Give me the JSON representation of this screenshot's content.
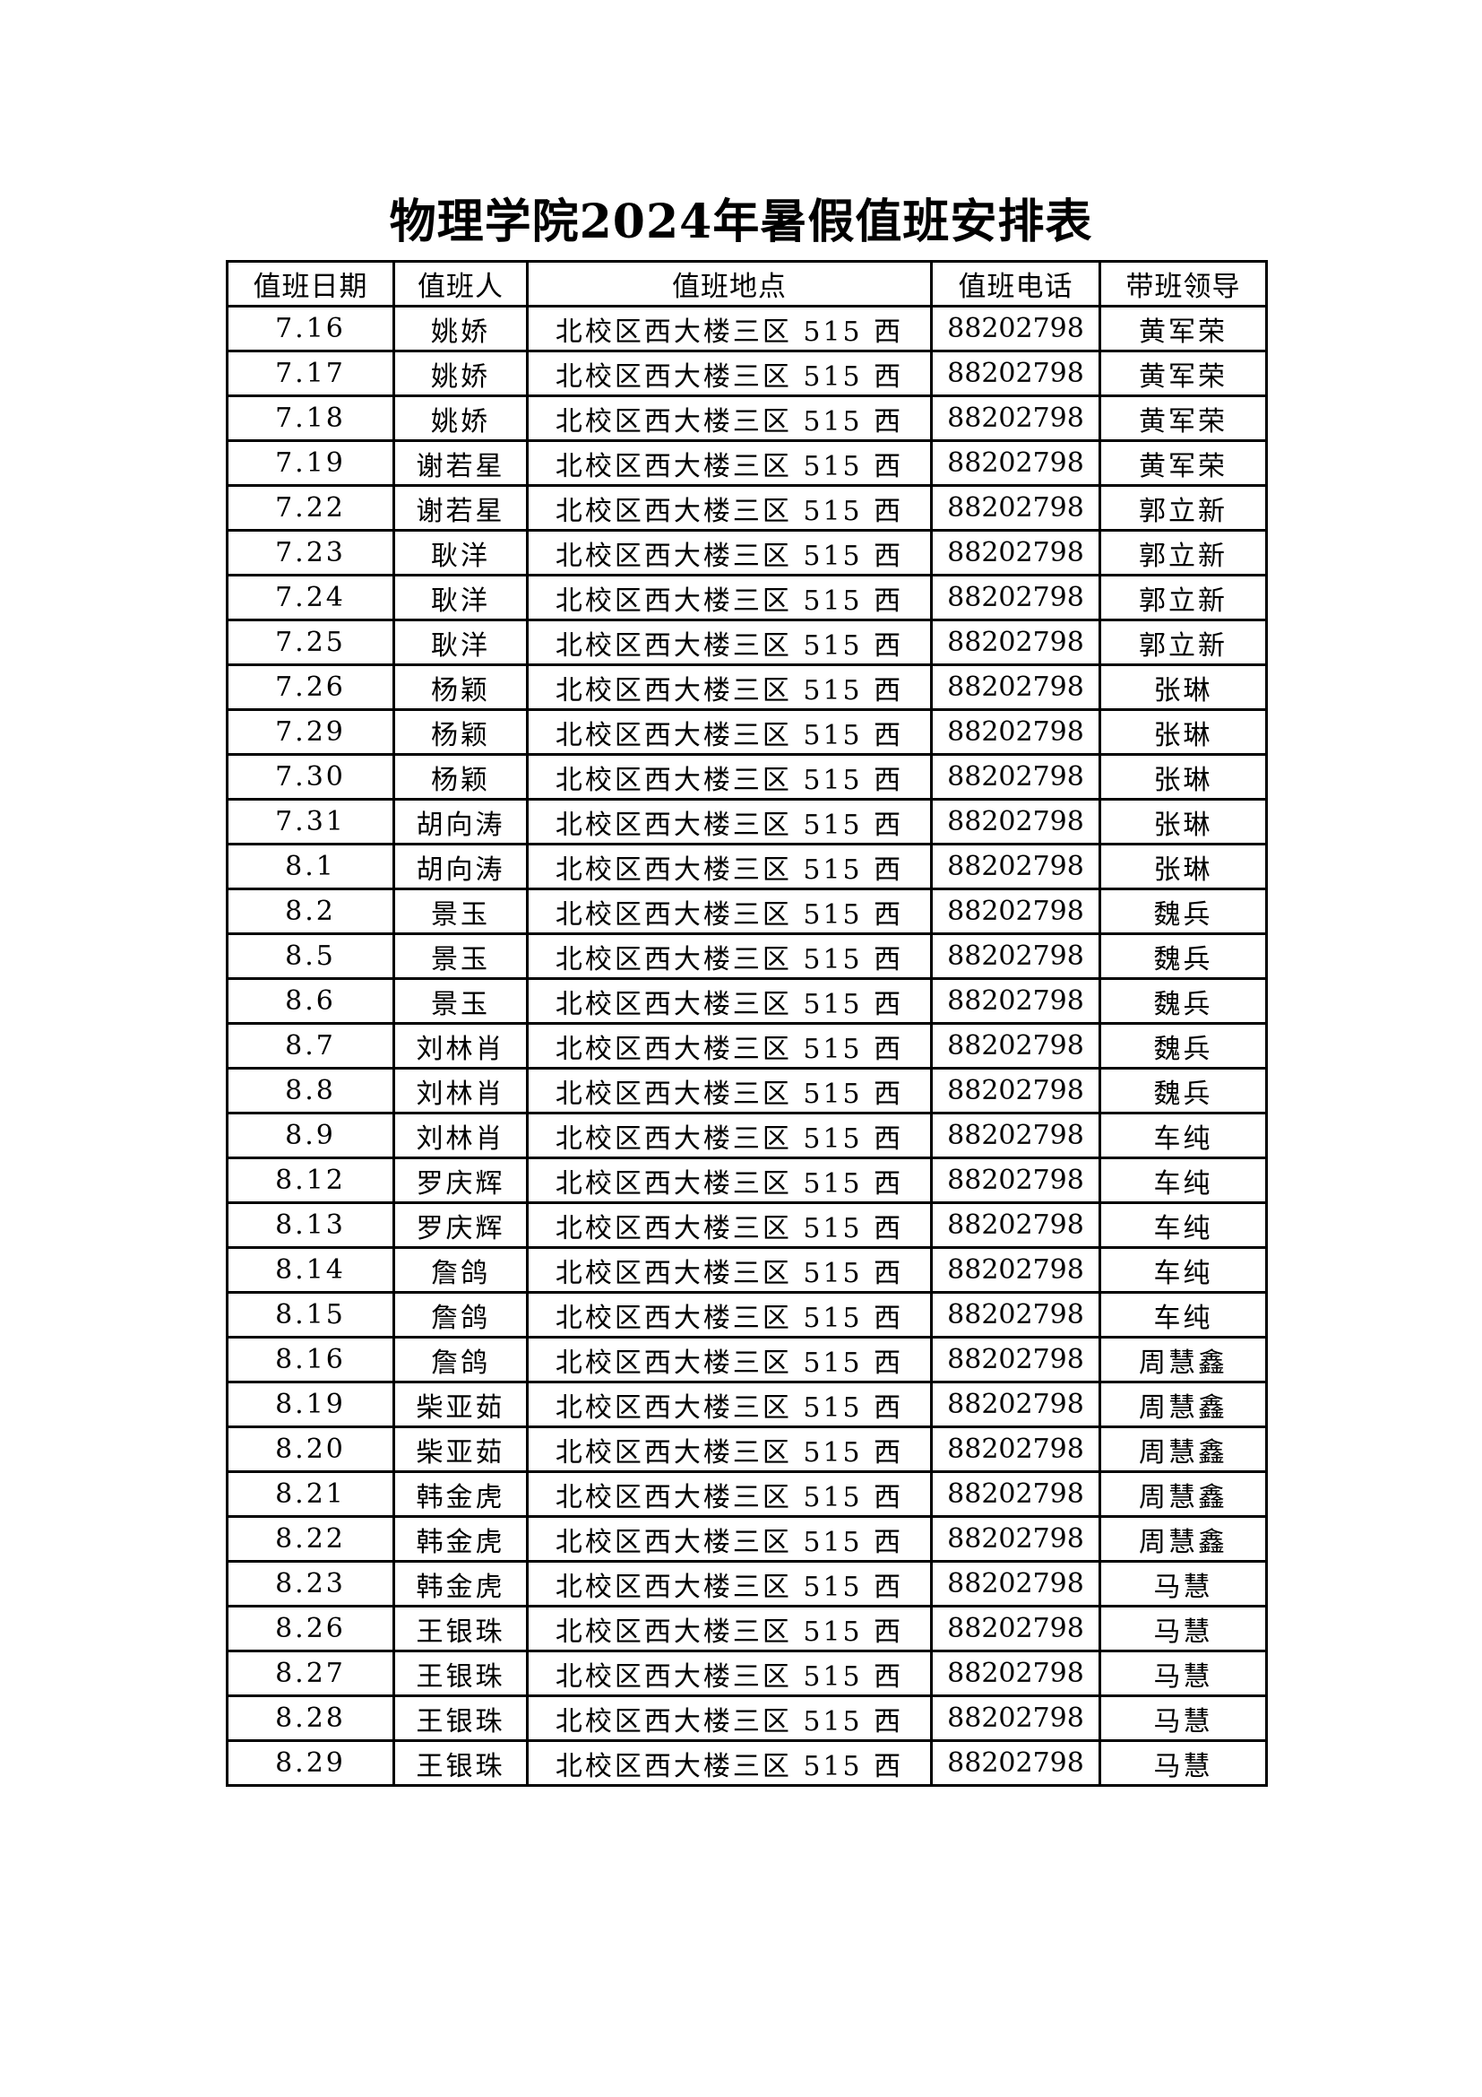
{
  "title": "物理学院2024年暑假值班安排表",
  "headers": [
    "值班日期",
    "值班人",
    "值班地点",
    "值班电话",
    "带班领导"
  ],
  "rows": [
    [
      "7.16",
      "姚娇",
      "北校区西大楼三区 515 西",
      "88202798",
      "黄军荣"
    ],
    [
      "7.17",
      "姚娇",
      "北校区西大楼三区 515 西",
      "88202798",
      "黄军荣"
    ],
    [
      "7.18",
      "姚娇",
      "北校区西大楼三区 515 西",
      "88202798",
      "黄军荣"
    ],
    [
      "7.19",
      "谢若星",
      "北校区西大楼三区 515 西",
      "88202798",
      "黄军荣"
    ],
    [
      "7.22",
      "谢若星",
      "北校区西大楼三区 515 西",
      "88202798",
      "郭立新"
    ],
    [
      "7.23",
      "耿洋",
      "北校区西大楼三区 515 西",
      "88202798",
      "郭立新"
    ],
    [
      "7.24",
      "耿洋",
      "北校区西大楼三区 515 西",
      "88202798",
      "郭立新"
    ],
    [
      "7.25",
      "耿洋",
      "北校区西大楼三区 515 西",
      "88202798",
      "郭立新"
    ],
    [
      "7.26",
      "杨颖",
      "北校区西大楼三区 515 西",
      "88202798",
      "张琳"
    ],
    [
      "7.29",
      "杨颖",
      "北校区西大楼三区 515 西",
      "88202798",
      "张琳"
    ],
    [
      "7.30",
      "杨颖",
      "北校区西大楼三区 515 西",
      "88202798",
      "张琳"
    ],
    [
      "7.31",
      "胡向涛",
      "北校区西大楼三区 515 西",
      "88202798",
      "张琳"
    ],
    [
      "8.1",
      "胡向涛",
      "北校区西大楼三区 515 西",
      "88202798",
      "张琳"
    ],
    [
      "8.2",
      "景玉",
      "北校区西大楼三区 515 西",
      "88202798",
      "魏兵"
    ],
    [
      "8.5",
      "景玉",
      "北校区西大楼三区 515 西",
      "88202798",
      "魏兵"
    ],
    [
      "8.6",
      "景玉",
      "北校区西大楼三区 515 西",
      "88202798",
      "魏兵"
    ],
    [
      "8.7",
      "刘林肖",
      "北校区西大楼三区 515 西",
      "88202798",
      "魏兵"
    ],
    [
      "8.8",
      "刘林肖",
      "北校区西大楼三区 515 西",
      "88202798",
      "魏兵"
    ],
    [
      "8.9",
      "刘林肖",
      "北校区西大楼三区 515 西",
      "88202798",
      "车纯"
    ],
    [
      "8.12",
      "罗庆辉",
      "北校区西大楼三区 515 西",
      "88202798",
      "车纯"
    ],
    [
      "8.13",
      "罗庆辉",
      "北校区西大楼三区 515 西",
      "88202798",
      "车纯"
    ],
    [
      "8.14",
      "詹鸽",
      "北校区西大楼三区 515 西",
      "88202798",
      "车纯"
    ],
    [
      "8.15",
      "詹鸽",
      "北校区西大楼三区 515 西",
      "88202798",
      "车纯"
    ],
    [
      "8.16",
      "詹鸽",
      "北校区西大楼三区 515 西",
      "88202798",
      "周慧鑫"
    ],
    [
      "8.19",
      "柴亚茹",
      "北校区西大楼三区 515 西",
      "88202798",
      "周慧鑫"
    ],
    [
      "8.20",
      "柴亚茹",
      "北校区西大楼三区 515 西",
      "88202798",
      "周慧鑫"
    ],
    [
      "8.21",
      "韩金虎",
      "北校区西大楼三区 515 西",
      "88202798",
      "周慧鑫"
    ],
    [
      "8.22",
      "韩金虎",
      "北校区西大楼三区 515 西",
      "88202798",
      "周慧鑫"
    ],
    [
      "8.23",
      "韩金虎",
      "北校区西大楼三区 515 西",
      "88202798",
      "马慧"
    ],
    [
      "8.26",
      "王银珠",
      "北校区西大楼三区 515 西",
      "88202798",
      "马慧"
    ],
    [
      "8.27",
      "王银珠",
      "北校区西大楼三区 515 西",
      "88202798",
      "马慧"
    ],
    [
      "8.28",
      "王银珠",
      "北校区西大楼三区 515 西",
      "88202798",
      "马慧"
    ],
    [
      "8.29",
      "王银珠",
      "北校区西大楼三区 515 西",
      "88202798",
      "马慧"
    ]
  ]
}
